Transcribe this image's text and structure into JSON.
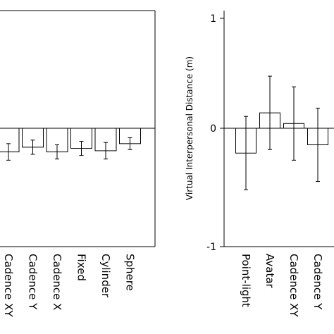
{
  "chart_data": [
    {
      "type": "bar",
      "categories": [
        "Cadence XY",
        "Cadence Y",
        "Cadence X",
        "Fixed",
        "Cylinder",
        "Sphere"
      ],
      "values": [
        -0.2,
        -0.16,
        -0.2,
        -0.17,
        -0.19,
        -0.13
      ],
      "errors": [
        0.07,
        0.06,
        0.06,
        0.06,
        0.07,
        0.05
      ],
      "ylim": [
        -1,
        1
      ],
      "yticks": [],
      "ylabel": "",
      "title": "",
      "grid": false
    },
    {
      "type": "bar",
      "categories": [
        "Point-light",
        "Avatar",
        "Cadence XY",
        "Cadence Y"
      ],
      "values": [
        -0.21,
        0.13,
        0.04,
        -0.14
      ],
      "errors": [
        0.31,
        0.31,
        0.31,
        0.31
      ],
      "ylim": [
        -1,
        1
      ],
      "yticks": [
        "1",
        "0",
        "-1"
      ],
      "ylabel": "Virtual Interpersonal Distance (m)",
      "title": "",
      "grid": false
    }
  ]
}
